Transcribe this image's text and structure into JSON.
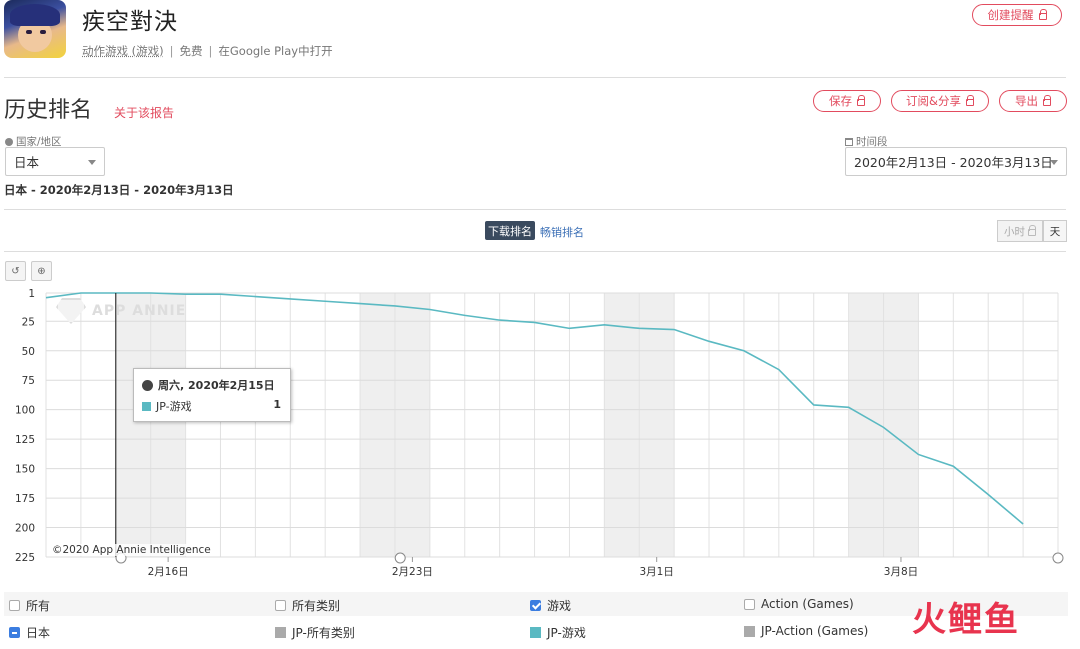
{
  "app": {
    "title": "疾空對決",
    "category": "动作游戏 (游戏)",
    "price": "免费",
    "store_link": "在Google Play中打开"
  },
  "header_buttons": {
    "create_alert": "创建提醒",
    "save": "保存",
    "subscribe_share": "订阅&分享",
    "export": "导出"
  },
  "page": {
    "title": "历史排名",
    "about_link": "关于该报告"
  },
  "filters": {
    "country_label": "国家/地区",
    "country_value": "日本",
    "period_label": "时间段",
    "period_value": "2020年2月13日 - 2020年3月13日",
    "summary": "日本 - 2020年2月13日 - 2020年3月13日"
  },
  "rank_tabs": {
    "download": "下载排名",
    "grossing": "畅销排名"
  },
  "granularity": {
    "hour": "小时",
    "day": "天"
  },
  "tools": {
    "reset": "↺",
    "zoom": "⊕"
  },
  "chart_data": {
    "type": "line",
    "y_reversed": true,
    "yticks": [
      "1",
      "25",
      "50",
      "75",
      "100",
      "125",
      "150",
      "175",
      "200",
      "225"
    ],
    "ylim": [
      1,
      225
    ],
    "xticks": [
      {
        "label": "2月16日",
        "date": "2020-02-16"
      },
      {
        "label": "2月23日",
        "date": "2020-02-23"
      },
      {
        "label": "3月1日",
        "date": "2020-03-01"
      },
      {
        "label": "3月8日",
        "date": "2020-03-08"
      }
    ],
    "x": [
      "2020-02-13",
      "2020-02-14",
      "2020-02-15",
      "2020-02-16",
      "2020-02-17",
      "2020-02-18",
      "2020-02-19",
      "2020-02-20",
      "2020-02-21",
      "2020-02-22",
      "2020-02-23",
      "2020-02-24",
      "2020-02-25",
      "2020-02-26",
      "2020-02-27",
      "2020-02-28",
      "2020-02-29",
      "2020-03-01",
      "2020-03-02",
      "2020-03-03",
      "2020-03-04",
      "2020-03-05",
      "2020-03-06",
      "2020-03-07",
      "2020-03-08",
      "2020-03-09",
      "2020-03-10",
      "2020-03-11",
      "2020-03-12",
      "2020-03-13"
    ],
    "series": [
      {
        "name": "JP-游戏",
        "color": "#5ab9c2",
        "values": [
          5,
          1,
          1,
          1,
          2,
          2,
          4,
          6,
          8,
          10,
          12,
          15,
          20,
          24,
          26,
          31,
          28,
          31,
          32,
          42,
          50,
          66,
          96,
          98,
          115,
          138,
          148,
          172,
          197,
          null
        ]
      }
    ],
    "weekend_bands": [
      [
        "2020-02-15",
        "2020-02-16"
      ],
      [
        "2020-02-22",
        "2020-02-23"
      ],
      [
        "2020-02-29",
        "2020-03-01"
      ],
      [
        "2020-03-07",
        "2020-03-08"
      ]
    ],
    "crosshair_date": "2020-02-15",
    "tooltip": {
      "date": "周六, 2020年2月15日",
      "series": "JP-游戏",
      "value": "1"
    },
    "copyright": "©2020 App Annie Intelligence",
    "watermark": "APP ANNIE"
  },
  "legend": {
    "row1": [
      {
        "label": "所有",
        "checked": false
      },
      {
        "label": "所有类别",
        "checked": false
      },
      {
        "label": "游戏",
        "checked": true
      },
      {
        "label": "Action (Games)",
        "checked": false
      }
    ],
    "row2": [
      {
        "label": "日本",
        "color": "#3b7de0"
      },
      {
        "label": "JP-所有类别",
        "color": "#aaaaaa"
      },
      {
        "label": "JP-游戏",
        "color": "#5ab9c2"
      },
      {
        "label": "JP-Action (Games)",
        "color": "#aaaaaa"
      }
    ]
  },
  "brand_logo": "火鲤鱼"
}
